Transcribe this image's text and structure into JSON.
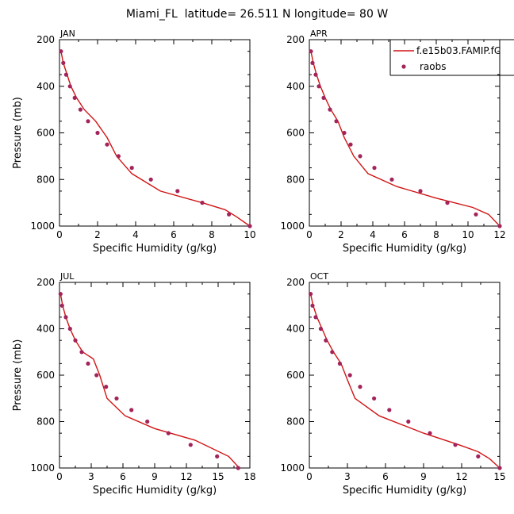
{
  "title": "Miami_FL  latitude= 26.511 N longitude= 80 W",
  "colors": {
    "model": "#d01414",
    "raobs": "#a3245a"
  },
  "legend": {
    "model_label": "f.e15b03.FAMIP.fC",
    "raobs_label": "raobs",
    "placement": "top-right of APR panel"
  },
  "chart_data": [
    {
      "type": "line",
      "panel_label": "JAN",
      "xlabel": "Specific Humidity (g/kg)",
      "ylabel": "Pressure (mb)",
      "xlim": [
        0,
        10
      ],
      "xticks": [
        0,
        2,
        4,
        6,
        8,
        10
      ],
      "ylim": [
        1000,
        200
      ],
      "yticks": [
        200,
        400,
        600,
        800,
        1000
      ],
      "series": [
        {
          "name": "f.e15b03.FAMIP.fC",
          "kind": "line",
          "x": [
            0.08,
            0.2,
            0.4,
            0.6,
            0.9,
            1.3,
            1.9,
            2.5,
            3.0,
            3.8,
            5.3,
            7.5,
            8.7,
            9.3,
            10.0
          ],
          "y": [
            250,
            300,
            350,
            400,
            450,
            500,
            550,
            620,
            700,
            775,
            850,
            900,
            930,
            960,
            1000
          ]
        },
        {
          "name": "raobs",
          "kind": "scatter",
          "x": [
            0.08,
            0.2,
            0.35,
            0.55,
            0.8,
            1.1,
            1.5,
            2.0,
            2.5,
            3.1,
            3.8,
            4.8,
            6.2,
            7.5,
            8.9,
            10.0
          ],
          "y": [
            250,
            300,
            350,
            400,
            450,
            500,
            550,
            600,
            650,
            700,
            750,
            800,
            850,
            900,
            950,
            1000
          ]
        }
      ]
    },
    {
      "type": "line",
      "panel_label": "APR",
      "xlabel": "Specific Humidity (g/kg)",
      "ylabel": "",
      "xlim": [
        0,
        12
      ],
      "xticks": [
        0,
        2,
        4,
        6,
        8,
        10,
        12
      ],
      "ylim": [
        1000,
        200
      ],
      "yticks": [
        200,
        400,
        600,
        800,
        1000
      ],
      "series": [
        {
          "name": "f.e15b03.FAMIP.fC",
          "kind": "line",
          "x": [
            0.1,
            0.25,
            0.45,
            0.7,
            1.0,
            1.35,
            1.8,
            2.2,
            2.8,
            3.7,
            5.5,
            8.0,
            10.3,
            11.3,
            12.0
          ],
          "y": [
            250,
            300,
            350,
            400,
            450,
            500,
            550,
            620,
            700,
            775,
            830,
            880,
            920,
            950,
            1000
          ]
        },
        {
          "name": "raobs",
          "kind": "scatter",
          "x": [
            0.1,
            0.2,
            0.4,
            0.6,
            0.9,
            1.3,
            1.7,
            2.2,
            2.6,
            3.2,
            4.1,
            5.2,
            7.0,
            8.7,
            10.5,
            12.0
          ],
          "y": [
            250,
            300,
            350,
            400,
            450,
            500,
            550,
            600,
            650,
            700,
            750,
            800,
            850,
            900,
            950,
            1000
          ]
        }
      ]
    },
    {
      "type": "line",
      "panel_label": "JUL",
      "xlabel": "Specific Humidity (g/kg)",
      "ylabel": "Pressure (mb)",
      "xlim": [
        0,
        18
      ],
      "xticks": [
        0,
        3,
        6,
        9,
        12,
        15,
        18
      ],
      "ylim": [
        1000,
        200
      ],
      "yticks": [
        200,
        400,
        600,
        800,
        1000
      ],
      "series": [
        {
          "name": "f.e15b03.FAMIP.fC",
          "kind": "line",
          "x": [
            0.1,
            0.3,
            0.6,
            1.0,
            1.5,
            2.2,
            3.2,
            3.8,
            4.5,
            6.2,
            9.0,
            12.8,
            16.0,
            17.0
          ],
          "y": [
            250,
            300,
            350,
            400,
            450,
            500,
            530,
            600,
            700,
            775,
            830,
            880,
            950,
            1000
          ]
        },
        {
          "name": "raobs",
          "kind": "scatter",
          "x": [
            0.1,
            0.25,
            0.6,
            1.0,
            1.5,
            2.1,
            2.7,
            3.5,
            4.4,
            5.4,
            6.8,
            8.3,
            10.3,
            12.4,
            14.9,
            16.9
          ],
          "y": [
            250,
            300,
            350,
            400,
            450,
            500,
            550,
            600,
            650,
            700,
            750,
            800,
            850,
            900,
            950,
            1000
          ]
        }
      ]
    },
    {
      "type": "line",
      "panel_label": "OCT",
      "xlabel": "Specific Humidity (g/kg)",
      "ylabel": "",
      "xlim": [
        0,
        15
      ],
      "xticks": [
        0,
        3,
        6,
        9,
        12,
        15
      ],
      "ylim": [
        1000,
        200
      ],
      "yticks": [
        200,
        400,
        600,
        800,
        1000
      ],
      "series": [
        {
          "name": "f.e15b03.FAMIP.fC",
          "kind": "line",
          "x": [
            0.1,
            0.3,
            0.6,
            1.0,
            1.4,
            1.9,
            2.5,
            3.0,
            3.6,
            5.5,
            9.0,
            11.8,
            13.3,
            14.2,
            15.0
          ],
          "y": [
            250,
            300,
            350,
            400,
            450,
            500,
            550,
            620,
            700,
            775,
            850,
            900,
            930,
            960,
            1000
          ]
        },
        {
          "name": "raobs",
          "kind": "scatter",
          "x": [
            0.1,
            0.25,
            0.5,
            0.9,
            1.3,
            1.8,
            2.4,
            3.2,
            4.0,
            5.1,
            6.3,
            7.8,
            9.5,
            11.5,
            13.3,
            15.0
          ],
          "y": [
            250,
            300,
            350,
            400,
            450,
            500,
            550,
            600,
            650,
            700,
            750,
            800,
            850,
            900,
            950,
            1000
          ]
        }
      ]
    }
  ]
}
